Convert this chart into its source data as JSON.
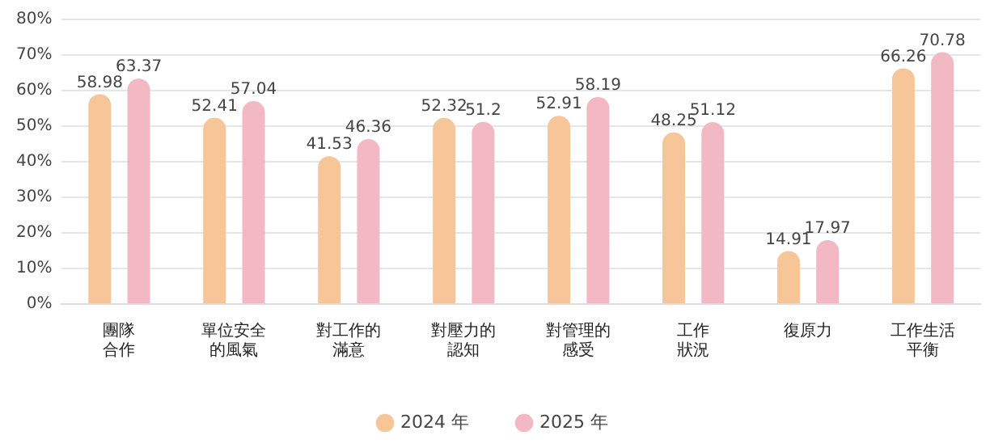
{
  "chart_data": {
    "type": "bar",
    "categories": [
      "團隊合作",
      "單位安全的風氣",
      "對工作的滿意",
      "對壓力的認知",
      "對管理的感受",
      "工作狀況",
      "復原力",
      "工作生活平衡"
    ],
    "series": [
      {
        "name": "2024 年",
        "color": "#f6c598",
        "values": [
          58.98,
          52.41,
          41.53,
          52.32,
          52.91,
          48.25,
          14.91,
          66.26
        ]
      },
      {
        "name": "2025 年",
        "color": "#f2b8c4",
        "values": [
          63.37,
          57.04,
          46.36,
          51.2,
          58.19,
          51.12,
          17.97,
          70.78
        ]
      }
    ],
    "ylim": [
      0,
      80
    ],
    "yticks": [
      {
        "value": 0,
        "label": "0%"
      },
      {
        "value": 10,
        "label": "10%"
      },
      {
        "value": 20,
        "label": "20%"
      },
      {
        "value": 30,
        "label": "30%"
      },
      {
        "value": 40,
        "label": "40%"
      },
      {
        "value": 50,
        "label": "50%"
      },
      {
        "value": 60,
        "label": "60%"
      },
      {
        "value": 70,
        "label": "70%"
      },
      {
        "value": 80,
        "label": "80%"
      }
    ],
    "grid": "y",
    "legend": "bottom",
    "data_labels": true
  }
}
